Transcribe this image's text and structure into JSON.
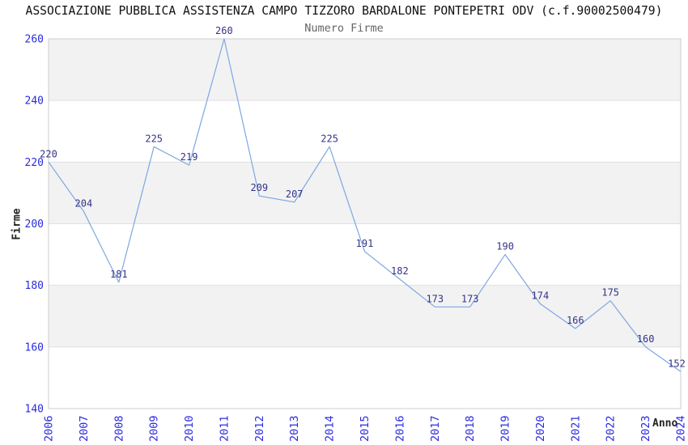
{
  "chart_data": {
    "type": "line",
    "title": "ASSOCIAZIONE PUBBLICA ASSISTENZA CAMPO TIZZORO BARDALONE PONTEPETRI ODV (c.f.90002500479)",
    "subtitle": "Numero Firme",
    "xlabel": "Anno",
    "ylabel": "Firme",
    "categories": [
      "2006",
      "2007",
      "2008",
      "2009",
      "2010",
      "2011",
      "2012",
      "2013",
      "2014",
      "2015",
      "2016",
      "2017",
      "2018",
      "2019",
      "2020",
      "2021",
      "2022",
      "2023",
      "2024"
    ],
    "values": [
      220,
      204,
      181,
      225,
      219,
      260,
      209,
      207,
      225,
      191,
      182,
      173,
      173,
      190,
      174,
      166,
      175,
      160,
      152
    ],
    "ylim": [
      140,
      260
    ],
    "yticks": [
      140,
      160,
      180,
      200,
      220,
      240,
      260
    ],
    "grid": true,
    "legend": false,
    "data_labels_shown": true,
    "colors": {
      "line": "#7da7e0",
      "tick_label": "#2b2bdd",
      "data_label": "#333388",
      "band": "#f2f2f2",
      "gridline": "#e0e0e0",
      "border": "#cccccc",
      "title": "#111111",
      "subtitle": "#666666",
      "axis_label": "#222222"
    }
  }
}
